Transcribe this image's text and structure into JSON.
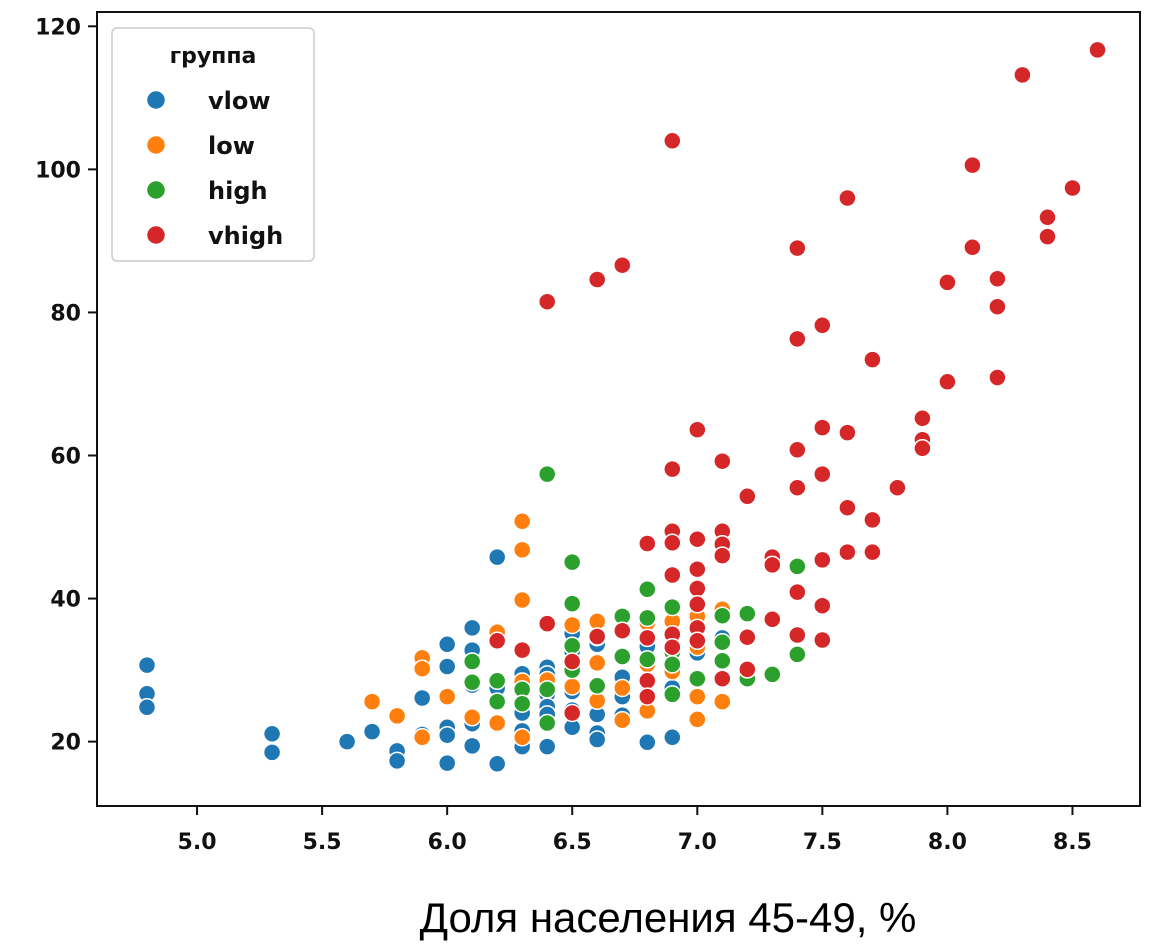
{
  "chart_data": {
    "type": "scatter",
    "title": "",
    "xlabel": "Доля населения 45-49, %",
    "ylabel": "",
    "xlim": [
      4.6,
      8.77
    ],
    "ylim": [
      11,
      122
    ],
    "x_ticks": [
      "5.0",
      "5.5",
      "6.0",
      "6.5",
      "7.0",
      "7.5",
      "8.0",
      "8.5"
    ],
    "y_ticks": [
      "20",
      "40",
      "60",
      "80",
      "100",
      "120"
    ],
    "grid": false,
    "legend": {
      "title": "группа",
      "position": "top-left"
    },
    "series": [
      {
        "name": "vlow",
        "color": "#1f77b4",
        "points": [
          [
            4.8,
            30.7
          ],
          [
            4.8,
            26.7
          ],
          [
            4.8,
            24.8
          ],
          [
            5.3,
            21.1
          ],
          [
            5.3,
            18.5
          ],
          [
            5.6,
            20.0
          ],
          [
            5.7,
            21.4
          ],
          [
            5.8,
            18.7
          ],
          [
            5.8,
            17.3
          ],
          [
            5.9,
            26.1
          ],
          [
            5.9,
            21.0
          ],
          [
            6.0,
            33.6
          ],
          [
            6.0,
            30.5
          ],
          [
            6.0,
            22.0
          ],
          [
            6.0,
            20.9
          ],
          [
            6.0,
            17.0
          ],
          [
            6.1,
            35.9
          ],
          [
            6.1,
            32.8
          ],
          [
            6.1,
            27.9
          ],
          [
            6.1,
            22.5
          ],
          [
            6.1,
            19.4
          ],
          [
            6.2,
            45.8
          ],
          [
            6.2,
            35.5
          ],
          [
            6.2,
            34.2
          ],
          [
            6.2,
            27.5
          ],
          [
            6.2,
            22.4
          ],
          [
            6.2,
            16.9
          ],
          [
            6.3,
            29.5
          ],
          [
            6.3,
            25.1
          ],
          [
            6.3,
            24.0
          ],
          [
            6.3,
            21.5
          ],
          [
            6.3,
            19.3
          ],
          [
            6.4,
            30.4
          ],
          [
            6.4,
            29.4
          ],
          [
            6.4,
            26.6
          ],
          [
            6.4,
            24.9
          ],
          [
            6.4,
            23.8
          ],
          [
            6.4,
            19.3
          ],
          [
            6.5,
            35.1
          ],
          [
            6.5,
            32.6
          ],
          [
            6.5,
            30.4
          ],
          [
            6.5,
            27.0
          ],
          [
            6.5,
            24.4
          ],
          [
            6.5,
            22.0
          ],
          [
            6.6,
            33.6
          ],
          [
            6.6,
            26.0
          ],
          [
            6.6,
            23.8
          ],
          [
            6.6,
            21.2
          ],
          [
            6.6,
            20.3
          ],
          [
            6.7,
            29.0
          ],
          [
            6.7,
            26.3
          ],
          [
            6.7,
            23.7
          ],
          [
            6.8,
            33.3
          ],
          [
            6.8,
            28.2
          ],
          [
            6.8,
            19.9
          ],
          [
            6.9,
            27.5
          ],
          [
            6.9,
            20.6
          ],
          [
            7.0,
            32.4
          ],
          [
            7.1,
            34.5
          ]
        ]
      },
      {
        "name": "low",
        "color": "#ff7f0e",
        "points": [
          [
            5.7,
            25.6
          ],
          [
            5.8,
            23.6
          ],
          [
            5.9,
            31.7
          ],
          [
            5.9,
            30.2
          ],
          [
            5.9,
            20.6
          ],
          [
            6.0,
            26.3
          ],
          [
            6.1,
            23.4
          ],
          [
            6.2,
            35.3
          ],
          [
            6.2,
            22.6
          ],
          [
            6.3,
            50.8
          ],
          [
            6.3,
            46.8
          ],
          [
            6.3,
            39.8
          ],
          [
            6.3,
            28.4
          ],
          [
            6.3,
            20.6
          ],
          [
            6.4,
            28.6
          ],
          [
            6.5,
            36.3
          ],
          [
            6.5,
            27.7
          ],
          [
            6.6,
            36.8
          ],
          [
            6.6,
            31.0
          ],
          [
            6.6,
            25.7
          ],
          [
            6.7,
            27.5
          ],
          [
            6.7,
            23.0
          ],
          [
            6.8,
            36.6
          ],
          [
            6.8,
            30.8
          ],
          [
            6.8,
            24.3
          ],
          [
            6.9,
            36.8
          ],
          [
            6.9,
            29.8
          ],
          [
            7.0,
            37.5
          ],
          [
            7.0,
            33.2
          ],
          [
            7.0,
            26.3
          ],
          [
            7.0,
            23.1
          ],
          [
            7.1,
            38.5
          ],
          [
            7.1,
            25.6
          ]
        ]
      },
      {
        "name": "high",
        "color": "#2ca02c",
        "points": [
          [
            6.1,
            31.2
          ],
          [
            6.1,
            28.3
          ],
          [
            6.2,
            28.5
          ],
          [
            6.2,
            25.6
          ],
          [
            6.3,
            27.3
          ],
          [
            6.3,
            25.3
          ],
          [
            6.4,
            57.4
          ],
          [
            6.4,
            27.3
          ],
          [
            6.4,
            22.6
          ],
          [
            6.5,
            45.1
          ],
          [
            6.5,
            39.3
          ],
          [
            6.5,
            33.4
          ],
          [
            6.5,
            30.0
          ],
          [
            6.6,
            34.6
          ],
          [
            6.6,
            27.8
          ],
          [
            6.7,
            37.5
          ],
          [
            6.7,
            31.9
          ],
          [
            6.8,
            41.3
          ],
          [
            6.8,
            37.3
          ],
          [
            6.8,
            31.5
          ],
          [
            6.9,
            38.8
          ],
          [
            6.9,
            32.5
          ],
          [
            6.9,
            30.8
          ],
          [
            6.9,
            26.6
          ],
          [
            7.0,
            28.8
          ],
          [
            7.1,
            37.6
          ],
          [
            7.1,
            33.9
          ],
          [
            7.1,
            31.3
          ],
          [
            7.2,
            37.9
          ],
          [
            7.2,
            28.8
          ],
          [
            7.3,
            29.4
          ],
          [
            7.4,
            44.5
          ],
          [
            7.4,
            32.2
          ]
        ]
      },
      {
        "name": "vhigh",
        "color": "#d62728",
        "points": [
          [
            6.2,
            34.1
          ],
          [
            6.3,
            32.8
          ],
          [
            6.4,
            36.5
          ],
          [
            6.4,
            81.5
          ],
          [
            6.5,
            31.2
          ],
          [
            6.5,
            24.0
          ],
          [
            6.6,
            84.6
          ],
          [
            6.6,
            34.7
          ],
          [
            6.7,
            86.6
          ],
          [
            6.7,
            35.5
          ],
          [
            6.8,
            47.7
          ],
          [
            6.8,
            34.5
          ],
          [
            6.8,
            28.5
          ],
          [
            6.8,
            26.3
          ],
          [
            6.9,
            104.0
          ],
          [
            6.9,
            58.1
          ],
          [
            6.9,
            49.4
          ],
          [
            6.9,
            47.8
          ],
          [
            6.9,
            43.3
          ],
          [
            6.9,
            35.0
          ],
          [
            6.9,
            33.2
          ],
          [
            7.0,
            63.6
          ],
          [
            7.0,
            48.3
          ],
          [
            7.0,
            44.1
          ],
          [
            7.0,
            41.4
          ],
          [
            7.0,
            39.2
          ],
          [
            7.0,
            35.9
          ],
          [
            7.0,
            34.1
          ],
          [
            7.1,
            59.2
          ],
          [
            7.1,
            49.4
          ],
          [
            7.1,
            47.6
          ],
          [
            7.1,
            46.0
          ],
          [
            7.1,
            28.8
          ],
          [
            7.2,
            54.3
          ],
          [
            7.2,
            34.6
          ],
          [
            7.2,
            30.1
          ],
          [
            7.3,
            45.8
          ],
          [
            7.3,
            44.7
          ],
          [
            7.3,
            37.1
          ],
          [
            7.4,
            89.0
          ],
          [
            7.4,
            76.3
          ],
          [
            7.4,
            60.8
          ],
          [
            7.4,
            55.5
          ],
          [
            7.4,
            40.9
          ],
          [
            7.4,
            34.9
          ],
          [
            7.5,
            78.2
          ],
          [
            7.5,
            63.9
          ],
          [
            7.5,
            57.4
          ],
          [
            7.5,
            45.4
          ],
          [
            7.5,
            39.0
          ],
          [
            7.5,
            34.2
          ],
          [
            7.6,
            96.0
          ],
          [
            7.6,
            63.2
          ],
          [
            7.6,
            52.7
          ],
          [
            7.6,
            46.5
          ],
          [
            7.7,
            73.4
          ],
          [
            7.7,
            51.0
          ],
          [
            7.7,
            46.5
          ],
          [
            7.8,
            55.5
          ],
          [
            7.9,
            65.2
          ],
          [
            7.9,
            62.2
          ],
          [
            7.9,
            61.0
          ],
          [
            8.0,
            84.2
          ],
          [
            8.0,
            70.3
          ],
          [
            8.1,
            100.6
          ],
          [
            8.1,
            89.1
          ],
          [
            8.2,
            84.7
          ],
          [
            8.2,
            80.8
          ],
          [
            8.2,
            70.9
          ],
          [
            8.3,
            113.2
          ],
          [
            8.4,
            93.3
          ],
          [
            8.4,
            90.6
          ],
          [
            8.5,
            97.4
          ],
          [
            8.6,
            116.7
          ]
        ]
      }
    ]
  }
}
